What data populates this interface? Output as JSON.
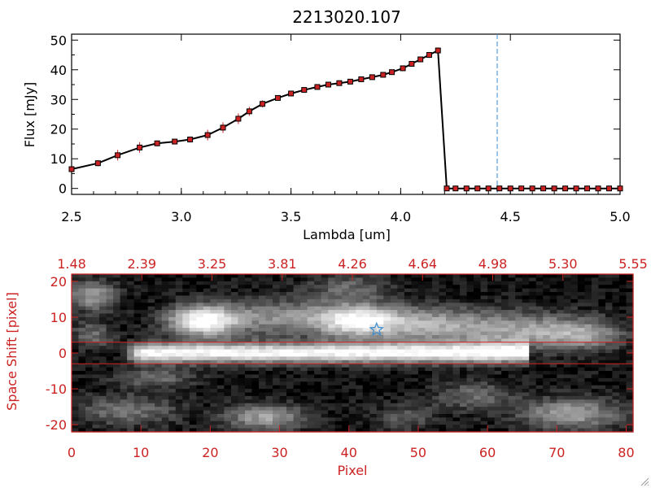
{
  "chart_data": [
    {
      "type": "line",
      "title": "2213020.107",
      "xlabel": "Lambda [um]",
      "ylabel": "Flux [mJy]",
      "xlim": [
        2.5,
        5.0
      ],
      "ylim": [
        -2,
        52
      ],
      "xticks": [
        "2.5",
        "3.0",
        "3.5",
        "4.0",
        "4.5",
        "5.0"
      ],
      "yticks": [
        "0",
        "10",
        "20",
        "30",
        "40",
        "50"
      ],
      "marker_line_x": 4.44,
      "series": [
        {
          "name": "flux",
          "x": [
            2.5,
            2.62,
            2.71,
            2.81,
            2.89,
            2.97,
            3.04,
            3.12,
            3.19,
            3.26,
            3.31,
            3.37,
            3.44,
            3.5,
            3.56,
            3.62,
            3.67,
            3.72,
            3.77,
            3.82,
            3.87,
            3.92,
            3.96,
            4.01,
            4.05,
            4.09,
            4.13,
            4.17,
            4.21,
            4.25,
            4.3,
            4.35,
            4.4,
            4.45,
            4.5,
            4.55,
            4.6,
            4.65,
            4.7,
            4.75,
            4.8,
            4.85,
            4.9,
            4.95,
            5.0
          ],
          "y": [
            6.5,
            8.5,
            11.2,
            13.8,
            15.2,
            15.8,
            16.5,
            18.0,
            20.5,
            23.5,
            26.0,
            28.5,
            30.5,
            32.0,
            33.2,
            34.2,
            35.0,
            35.5,
            36.0,
            36.8,
            37.5,
            38.3,
            39.2,
            40.5,
            42.0,
            43.5,
            45.0,
            46.5,
            0,
            0,
            0,
            0,
            0,
            0,
            0,
            0,
            0,
            0,
            0,
            0,
            0,
            0,
            0,
            0,
            0
          ],
          "errors": [
            0.8,
            1.0,
            1.8,
            1.8,
            1.0,
            0.8,
            1.0,
            1.8,
            1.8,
            1.8,
            1.5,
            1.2,
            0.8,
            0.6,
            0.6,
            0.6,
            0.6,
            0.6,
            0.6,
            0.6,
            0.6,
            0.6,
            0.6,
            0.8,
            0.8,
            0.8,
            1.0,
            1.0,
            0,
            0,
            0,
            0,
            0,
            0,
            0,
            0,
            0,
            0,
            0,
            0,
            0,
            0,
            0,
            0,
            0
          ]
        }
      ],
      "colors": {
        "line": "#000000",
        "marker": "#cc2222",
        "marker_line": "#3a8ccf"
      }
    },
    {
      "type": "heatmap",
      "xlabel": "Pixel",
      "ylabel": "Space Shift [pixel]",
      "xlim": [
        0,
        81
      ],
      "ylim": [
        -22,
        22
      ],
      "xticks": [
        "0",
        "10",
        "20",
        "30",
        "40",
        "50",
        "60",
        "70",
        "80"
      ],
      "yticks": [
        "-20",
        "-10",
        "0",
        "10",
        "20"
      ],
      "top_axis_ticks": [
        "1.48",
        "2.39",
        "3.25",
        "3.81",
        "4.26",
        "4.64",
        "4.98",
        "5.30",
        "5.55"
      ],
      "extraction_window": [
        -3,
        3
      ],
      "star_marker": {
        "x": 44,
        "y": 6.5
      },
      "sources": [
        {
          "x": 19,
          "y": 9,
          "sx": 3.5,
          "sy": 3,
          "amp": 1.0
        },
        {
          "x": 30,
          "y": 10,
          "sx": 6,
          "sy": 3.5,
          "amp": 0.45
        },
        {
          "x": 41,
          "y": 9,
          "sx": 4,
          "sy": 3,
          "amp": 0.75
        },
        {
          "x": 50,
          "y": 8,
          "sx": 7,
          "sy": 3.5,
          "amp": 0.55
        },
        {
          "x": 65,
          "y": 6,
          "sx": 7,
          "sy": 3.5,
          "amp": 0.5
        },
        {
          "x": 74,
          "y": 5,
          "sx": 4,
          "sy": 3,
          "amp": 0.4
        },
        {
          "x": 3,
          "y": 16,
          "sx": 2.5,
          "sy": 3,
          "amp": 0.5
        },
        {
          "x": 3,
          "y": 5,
          "sx": 2,
          "sy": 2.5,
          "amp": 0.35
        },
        {
          "x": 40,
          "y": 18,
          "sx": 4,
          "sy": 3,
          "amp": 0.3
        },
        {
          "x": 28,
          "y": -18,
          "sx": 4,
          "sy": 2.5,
          "amp": 0.55
        },
        {
          "x": 72,
          "y": -17,
          "sx": 5,
          "sy": 3,
          "amp": 0.55
        },
        {
          "x": 8,
          "y": -16,
          "sx": 5,
          "sy": 3,
          "amp": 0.35
        },
        {
          "x": 58,
          "y": -12,
          "sx": 4,
          "sy": 3,
          "amp": 0.3
        },
        {
          "x": 48,
          "y": -18,
          "sx": 3,
          "sy": 2.5,
          "amp": 0.25
        },
        {
          "x": 12,
          "y": -7,
          "sx": 4,
          "sy": 2,
          "amp": 0.3
        }
      ],
      "trace": {
        "x_start": 7,
        "x_end": 66,
        "y": 0,
        "sy": 1.9,
        "amp": 0.95
      },
      "colors": {
        "axis": "#cc2222",
        "star": "#3a8ccf"
      }
    }
  ]
}
